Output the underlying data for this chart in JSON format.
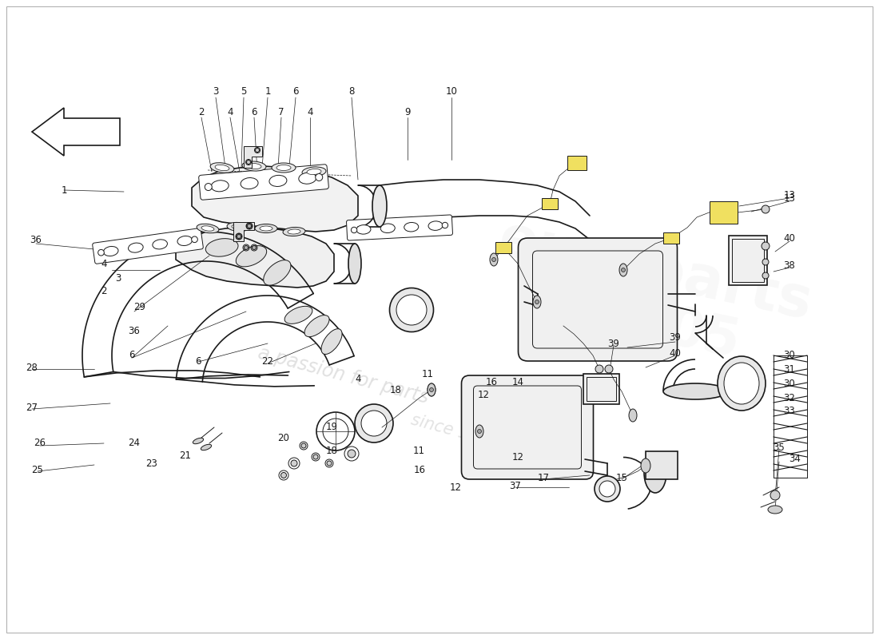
{
  "bg": "#ffffff",
  "lc": "#1a1a1a",
  "wm1": "a passion for parts",
  "wm2": "since 1995",
  "figsize": [
    11.0,
    8.0
  ],
  "dpi": 100,
  "top_labels": [
    [
      "3",
      270,
      115
    ],
    [
      "5",
      305,
      115
    ],
    [
      "1",
      335,
      115
    ],
    [
      "6",
      370,
      115
    ],
    [
      "8",
      440,
      115
    ],
    [
      "10",
      565,
      115
    ],
    [
      "2",
      252,
      140
    ],
    [
      "4",
      288,
      140
    ],
    [
      "6",
      318,
      140
    ],
    [
      "7",
      352,
      140
    ],
    [
      "4",
      388,
      140
    ],
    [
      "9",
      510,
      140
    ]
  ],
  "left_labels": [
    [
      "1",
      80,
      238
    ],
    [
      "36",
      45,
      300
    ],
    [
      "4",
      130,
      330
    ],
    [
      "3",
      148,
      348
    ],
    [
      "2",
      130,
      365
    ],
    [
      "29",
      175,
      385
    ],
    [
      "36",
      168,
      415
    ],
    [
      "6",
      165,
      445
    ],
    [
      "28",
      40,
      460
    ],
    [
      "27",
      40,
      510
    ],
    [
      "26",
      50,
      555
    ],
    [
      "25",
      47,
      588
    ],
    [
      "24",
      168,
      555
    ],
    [
      "23",
      190,
      580
    ],
    [
      "22",
      335,
      453
    ],
    [
      "21",
      232,
      570
    ],
    [
      "20",
      355,
      548
    ],
    [
      "19",
      415,
      535
    ],
    [
      "6",
      248,
      453
    ]
  ],
  "center_labels": [
    [
      "18",
      495,
      488
    ],
    [
      "18",
      415,
      565
    ],
    [
      "11",
      535,
      468
    ],
    [
      "11",
      524,
      565
    ],
    [
      "16",
      615,
      478
    ],
    [
      "16",
      525,
      588
    ],
    [
      "12",
      605,
      495
    ],
    [
      "12",
      570,
      610
    ],
    [
      "14",
      648,
      478
    ],
    [
      "4",
      448,
      475
    ]
  ],
  "right_labels": [
    [
      "13",
      988,
      248
    ],
    [
      "40",
      988,
      298
    ],
    [
      "38",
      988,
      332
    ],
    [
      "39",
      845,
      423
    ],
    [
      "40",
      845,
      442
    ],
    [
      "12",
      648,
      573
    ],
    [
      "39",
      768,
      430
    ],
    [
      "15",
      778,
      598
    ],
    [
      "17",
      680,
      598
    ],
    [
      "37",
      645,
      608
    ],
    [
      "30",
      988,
      445
    ],
    [
      "31",
      988,
      463
    ],
    [
      "30",
      988,
      480
    ],
    [
      "32",
      988,
      498
    ],
    [
      "33",
      988,
      515
    ],
    [
      "34",
      995,
      575
    ],
    [
      "35",
      975,
      560
    ]
  ]
}
